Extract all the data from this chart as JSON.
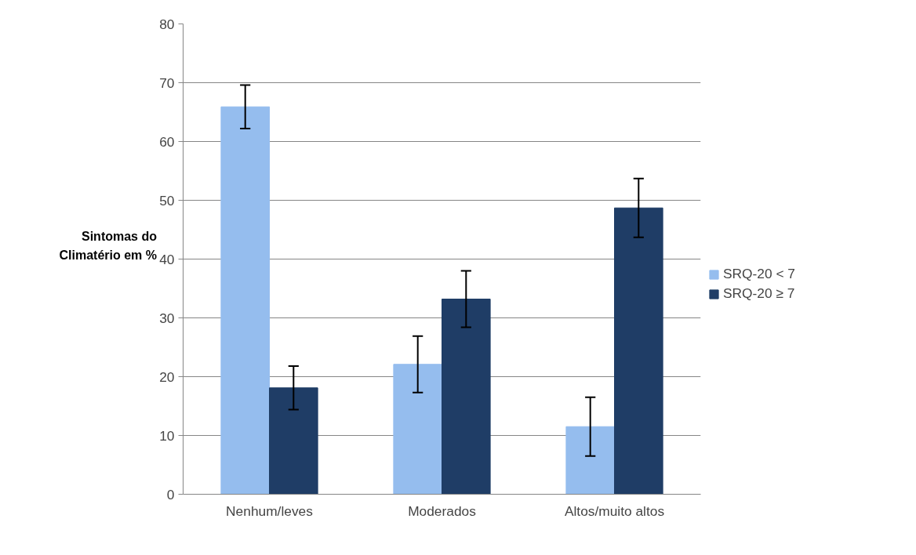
{
  "chart_data": {
    "type": "bar",
    "ylabel": "Sintomas do\nClimatério em %",
    "categories": [
      "Nenhum/leves",
      "Moderados",
      "Altos/muito altos"
    ],
    "series": [
      {
        "name": "SRQ-20 < 7",
        "color": "#95bdee",
        "values": [
          65.9,
          22.1,
          11.5
        ],
        "errors": [
          3.7,
          4.8,
          5.0
        ]
      },
      {
        "name": "SRQ-20 ≥ 7",
        "color": "#1f3d66",
        "values": [
          18.1,
          33.2,
          48.7
        ],
        "errors": [
          3.7,
          4.8,
          5.0
        ]
      }
    ],
    "ylim": [
      0,
      80
    ],
    "yticks": [
      0,
      10,
      20,
      30,
      40,
      50,
      60,
      70,
      80
    ],
    "grid": "y",
    "legend": "right"
  }
}
